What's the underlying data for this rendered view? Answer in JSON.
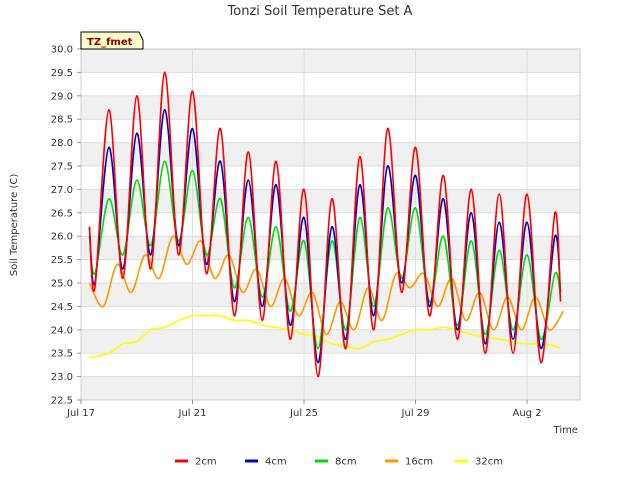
{
  "chart_data": {
    "type": "line",
    "title": "Tonzi Soil Temperature Set A",
    "xlabel": "Time",
    "ylabel": "Soil Temperature (C)",
    "tag": "TZ_fmet",
    "xlim": [
      0.0,
      17.9
    ],
    "ylim": [
      22.5,
      30.0
    ],
    "x_unit": "days since Jul 17",
    "y_ticks": [
      "22.5",
      "23.0",
      "23.5",
      "24.0",
      "24.5",
      "25.0",
      "25.5",
      "26.0",
      "26.5",
      "27.0",
      "27.5",
      "28.0",
      "28.5",
      "29.0",
      "29.5",
      "30.0"
    ],
    "x_ticks": [
      {
        "x": 0,
        "label": "Jul 17"
      },
      {
        "x": 4,
        "label": "Jul 21"
      },
      {
        "x": 8,
        "label": "Jul 25"
      },
      {
        "x": 12,
        "label": "Jul 29"
      },
      {
        "x": 16,
        "label": "Aug 2"
      }
    ],
    "grid": true,
    "legend_position": "bottom",
    "series": [
      {
        "name": "2cm",
        "color": "#ff0000",
        "x": [
          0.3,
          0.5,
          1.0,
          1.5,
          2.0,
          2.5,
          3.0,
          3.5,
          4.0,
          4.5,
          5.0,
          5.5,
          6.0,
          6.5,
          7.0,
          7.5,
          8.0,
          8.5,
          9.0,
          9.5,
          10.0,
          10.5,
          11.0,
          11.5,
          12.0,
          12.5,
          13.0,
          13.5,
          14.0,
          14.5,
          15.0,
          15.5,
          16.0,
          16.5,
          17.0,
          17.2
        ],
        "y": [
          26.2,
          24.9,
          28.7,
          25.1,
          29.0,
          25.3,
          29.5,
          25.6,
          29.1,
          25.2,
          28.3,
          24.3,
          27.8,
          24.2,
          27.6,
          23.8,
          27.0,
          23.0,
          26.8,
          23.6,
          27.7,
          24.0,
          28.3,
          24.8,
          27.9,
          24.3,
          27.3,
          23.8,
          27.0,
          23.5,
          26.9,
          23.5,
          26.9,
          23.3,
          26.5,
          24.6
        ]
      },
      {
        "name": "4cm",
        "color": "#0000cc",
        "x": [
          0.3,
          0.5,
          1.0,
          1.5,
          2.0,
          2.5,
          3.0,
          3.5,
          4.0,
          4.5,
          5.0,
          5.5,
          6.0,
          6.5,
          7.0,
          7.5,
          8.0,
          8.5,
          9.0,
          9.5,
          10.0,
          10.5,
          11.0,
          11.5,
          12.0,
          12.5,
          13.0,
          13.5,
          14.0,
          14.5,
          15.0,
          15.5,
          16.0,
          16.5,
          17.0,
          17.2
        ],
        "y": [
          26.2,
          25.0,
          27.9,
          25.3,
          28.2,
          25.6,
          28.7,
          25.8,
          28.3,
          25.4,
          27.6,
          24.6,
          27.2,
          24.5,
          27.1,
          24.1,
          26.4,
          23.3,
          26.2,
          23.8,
          27.1,
          24.3,
          27.5,
          25.0,
          27.3,
          24.5,
          26.8,
          24.0,
          26.5,
          23.7,
          26.3,
          23.8,
          26.3,
          23.6,
          26.0,
          24.8
        ]
      },
      {
        "name": "8cm",
        "color": "#00dd00",
        "x": [
          0.3,
          0.5,
          1.0,
          1.5,
          2.0,
          2.5,
          3.0,
          3.5,
          4.0,
          4.5,
          5.0,
          5.5,
          6.0,
          6.5,
          7.0,
          7.5,
          8.0,
          8.5,
          9.0,
          9.5,
          10.0,
          10.5,
          11.0,
          11.5,
          12.0,
          12.5,
          13.0,
          13.5,
          14.0,
          14.5,
          15.0,
          15.5,
          16.0,
          16.5,
          17.0,
          17.2
        ],
        "y": [
          26.0,
          25.2,
          26.8,
          25.6,
          27.2,
          25.8,
          27.6,
          25.9,
          27.4,
          25.6,
          26.8,
          24.9,
          26.4,
          24.7,
          26.2,
          24.4,
          25.9,
          23.6,
          25.9,
          24.0,
          26.4,
          24.5,
          26.6,
          25.1,
          26.6,
          24.6,
          26.0,
          24.1,
          25.9,
          23.9,
          25.7,
          24.0,
          25.6,
          23.8,
          25.2,
          24.7
        ]
      },
      {
        "name": "16cm",
        "color": "#ff9900",
        "x": [
          0.3,
          0.8,
          1.3,
          1.8,
          2.3,
          2.8,
          3.3,
          3.8,
          4.3,
          4.8,
          5.3,
          5.8,
          6.3,
          6.8,
          7.3,
          7.8,
          8.3,
          8.8,
          9.3,
          9.8,
          10.3,
          10.8,
          11.3,
          11.8,
          12.3,
          12.8,
          13.3,
          13.8,
          14.3,
          14.8,
          15.3,
          15.8,
          16.3,
          16.8,
          17.3
        ],
        "y": [
          25.0,
          24.5,
          25.4,
          24.8,
          25.6,
          25.1,
          26.0,
          25.4,
          25.9,
          25.1,
          25.6,
          24.8,
          25.3,
          24.5,
          25.1,
          24.3,
          24.8,
          23.9,
          24.6,
          24.0,
          24.9,
          24.2,
          25.2,
          24.9,
          25.2,
          24.5,
          25.1,
          24.2,
          24.8,
          24.0,
          24.7,
          24.0,
          24.7,
          24.0,
          24.4
        ]
      },
      {
        "name": "32cm",
        "color": "#ffff00",
        "x": [
          0.3,
          1.0,
          1.5,
          2.0,
          2.5,
          3.0,
          3.5,
          4.0,
          4.5,
          5.0,
          5.5,
          6.0,
          6.5,
          7.0,
          7.5,
          8.0,
          8.5,
          9.0,
          9.5,
          10.0,
          10.5,
          11.0,
          11.5,
          12.0,
          12.5,
          13.0,
          13.5,
          14.0,
          14.5,
          15.0,
          15.5,
          16.0,
          16.5,
          17.0,
          17.2
        ],
        "y": [
          23.4,
          23.5,
          23.7,
          23.75,
          24.0,
          24.05,
          24.2,
          24.3,
          24.3,
          24.3,
          24.2,
          24.2,
          24.1,
          24.05,
          24.0,
          23.9,
          23.85,
          23.7,
          23.65,
          23.6,
          23.75,
          23.8,
          23.9,
          24.0,
          24.0,
          24.05,
          24.0,
          23.9,
          23.85,
          23.8,
          23.75,
          23.7,
          23.7,
          23.65,
          23.6
        ]
      }
    ]
  }
}
